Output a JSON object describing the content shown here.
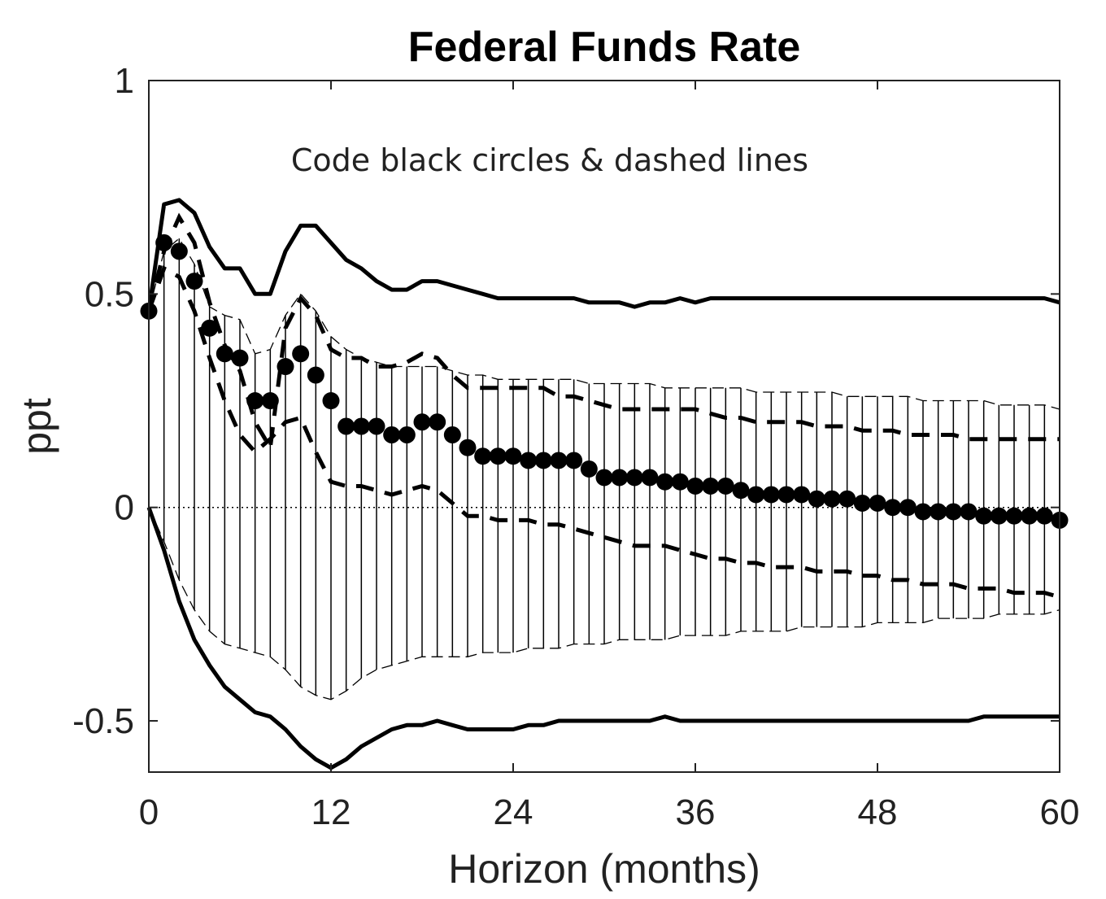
{
  "chart_data": {
    "type": "line",
    "title": "Federal Funds Rate",
    "xlabel": "Horizon (months)",
    "ylabel": "ppt",
    "annotation": "Code black circles & dashed lines",
    "xlim": [
      0,
      60
    ],
    "ylim": [
      -0.62,
      1
    ],
    "xticks": [
      0,
      12,
      24,
      36,
      48,
      60
    ],
    "xtick_labels": [
      "0",
      "12",
      "24",
      "36",
      "48",
      "60"
    ],
    "yticks": [
      -0.5,
      0,
      0.5,
      1
    ],
    "ytick_labels": [
      "-0.5",
      "0",
      "0.5",
      "1"
    ],
    "grid": false,
    "zero_line": true,
    "x": [
      0,
      1,
      2,
      3,
      4,
      5,
      6,
      7,
      8,
      9,
      10,
      11,
      12,
      13,
      14,
      15,
      16,
      17,
      18,
      19,
      20,
      21,
      22,
      23,
      24,
      25,
      26,
      27,
      28,
      29,
      30,
      31,
      32,
      33,
      34,
      35,
      36,
      37,
      38,
      39,
      40,
      41,
      42,
      43,
      44,
      45,
      46,
      47,
      48,
      49,
      50,
      51,
      52,
      53,
      54,
      55,
      56,
      57,
      58,
      59,
      60
    ],
    "series": [
      {
        "style": "circles",
        "values": [
          0.46,
          0.62,
          0.6,
          0.53,
          0.42,
          0.36,
          0.35,
          0.25,
          0.25,
          0.33,
          0.36,
          0.31,
          0.25,
          0.19,
          0.19,
          0.19,
          0.17,
          0.17,
          0.2,
          0.2,
          0.17,
          0.14,
          0.12,
          0.12,
          0.12,
          0.11,
          0.11,
          0.11,
          0.11,
          0.09,
          0.07,
          0.07,
          0.07,
          0.07,
          0.06,
          0.06,
          0.05,
          0.05,
          0.05,
          0.04,
          0.03,
          0.03,
          0.03,
          0.03,
          0.02,
          0.02,
          0.02,
          0.01,
          0.01,
          0.0,
          0.0,
          -0.01,
          -0.01,
          -0.01,
          -0.01,
          -0.02,
          -0.02,
          -0.02,
          -0.02,
          -0.02,
          -0.03
        ]
      },
      {
        "style": "dashed-upper",
        "values": [
          0.46,
          0.6,
          0.68,
          0.62,
          0.48,
          0.38,
          0.32,
          0.2,
          0.14,
          0.42,
          0.49,
          0.45,
          0.37,
          0.35,
          0.35,
          0.33,
          0.33,
          0.34,
          0.36,
          0.35,
          0.31,
          0.28,
          0.28,
          0.28,
          0.28,
          0.28,
          0.28,
          0.26,
          0.26,
          0.25,
          0.24,
          0.23,
          0.23,
          0.23,
          0.23,
          0.23,
          0.23,
          0.22,
          0.21,
          0.21,
          0.2,
          0.2,
          0.2,
          0.2,
          0.19,
          0.19,
          0.19,
          0.18,
          0.18,
          0.18,
          0.17,
          0.17,
          0.17,
          0.17,
          0.16,
          0.16,
          0.16,
          0.16,
          0.16,
          0.16,
          0.16
        ]
      },
      {
        "style": "dashed-lower",
        "values": [
          0.46,
          0.56,
          0.54,
          0.46,
          0.35,
          0.25,
          0.17,
          0.13,
          0.16,
          0.2,
          0.21,
          0.13,
          0.06,
          0.05,
          0.05,
          0.04,
          0.03,
          0.04,
          0.05,
          0.04,
          0.01,
          -0.02,
          -0.02,
          -0.03,
          -0.03,
          -0.03,
          -0.04,
          -0.04,
          -0.05,
          -0.06,
          -0.07,
          -0.08,
          -0.09,
          -0.09,
          -0.09,
          -0.1,
          -0.11,
          -0.12,
          -0.12,
          -0.13,
          -0.13,
          -0.14,
          -0.14,
          -0.14,
          -0.15,
          -0.15,
          -0.15,
          -0.16,
          -0.16,
          -0.17,
          -0.17,
          -0.18,
          -0.18,
          -0.18,
          -0.19,
          -0.19,
          -0.19,
          -0.2,
          -0.2,
          -0.2,
          -0.21
        ]
      },
      {
        "style": "solid-upper",
        "values": [
          0.46,
          0.71,
          0.72,
          0.69,
          0.61,
          0.56,
          0.56,
          0.5,
          0.5,
          0.6,
          0.66,
          0.66,
          0.62,
          0.58,
          0.56,
          0.53,
          0.51,
          0.51,
          0.53,
          0.53,
          0.52,
          0.51,
          0.5,
          0.49,
          0.49,
          0.49,
          0.49,
          0.49,
          0.49,
          0.48,
          0.48,
          0.48,
          0.47,
          0.48,
          0.48,
          0.49,
          0.48,
          0.49,
          0.49,
          0.49,
          0.49,
          0.49,
          0.49,
          0.49,
          0.49,
          0.49,
          0.49,
          0.49,
          0.49,
          0.49,
          0.49,
          0.49,
          0.49,
          0.49,
          0.49,
          0.49,
          0.49,
          0.49,
          0.49,
          0.49,
          0.48
        ]
      },
      {
        "style": "solid-lower",
        "values": [
          0.0,
          -0.1,
          -0.22,
          -0.31,
          -0.37,
          -0.42,
          -0.45,
          -0.48,
          -0.49,
          -0.52,
          -0.56,
          -0.59,
          -0.61,
          -0.59,
          -0.56,
          -0.54,
          -0.52,
          -0.51,
          -0.51,
          -0.5,
          -0.51,
          -0.52,
          -0.52,
          -0.52,
          -0.52,
          -0.51,
          -0.51,
          -0.5,
          -0.5,
          -0.5,
          -0.5,
          -0.5,
          -0.5,
          -0.5,
          -0.49,
          -0.5,
          -0.5,
          -0.5,
          -0.5,
          -0.5,
          -0.5,
          -0.5,
          -0.5,
          -0.5,
          -0.5,
          -0.5,
          -0.5,
          -0.5,
          -0.5,
          -0.5,
          -0.5,
          -0.5,
          -0.5,
          -0.5,
          -0.5,
          -0.49,
          -0.49,
          -0.49,
          -0.49,
          -0.49,
          -0.49
        ]
      },
      {
        "style": "band-upper",
        "values": [
          0.46,
          0.6,
          0.63,
          0.57,
          0.47,
          0.45,
          0.44,
          0.36,
          0.37,
          0.45,
          0.5,
          0.46,
          0.4,
          0.37,
          0.35,
          0.34,
          0.33,
          0.33,
          0.33,
          0.33,
          0.32,
          0.31,
          0.31,
          0.3,
          0.3,
          0.3,
          0.3,
          0.3,
          0.3,
          0.29,
          0.29,
          0.29,
          0.29,
          0.29,
          0.28,
          0.28,
          0.28,
          0.28,
          0.28,
          0.28,
          0.27,
          0.27,
          0.27,
          0.27,
          0.27,
          0.27,
          0.26,
          0.26,
          0.26,
          0.26,
          0.26,
          0.25,
          0.25,
          0.25,
          0.25,
          0.25,
          0.24,
          0.24,
          0.24,
          0.24,
          0.23
        ]
      },
      {
        "style": "band-lower",
        "values": [
          0.0,
          -0.08,
          -0.17,
          -0.24,
          -0.29,
          -0.32,
          -0.33,
          -0.34,
          -0.35,
          -0.38,
          -0.42,
          -0.44,
          -0.45,
          -0.43,
          -0.4,
          -0.38,
          -0.37,
          -0.36,
          -0.35,
          -0.35,
          -0.35,
          -0.35,
          -0.34,
          -0.34,
          -0.34,
          -0.33,
          -0.33,
          -0.33,
          -0.32,
          -0.32,
          -0.32,
          -0.31,
          -0.31,
          -0.31,
          -0.31,
          -0.3,
          -0.3,
          -0.3,
          -0.3,
          -0.29,
          -0.29,
          -0.29,
          -0.29,
          -0.28,
          -0.28,
          -0.28,
          -0.28,
          -0.28,
          -0.27,
          -0.27,
          -0.27,
          -0.27,
          -0.26,
          -0.26,
          -0.26,
          -0.26,
          -0.25,
          -0.25,
          -0.25,
          -0.25,
          -0.24
        ]
      }
    ]
  }
}
